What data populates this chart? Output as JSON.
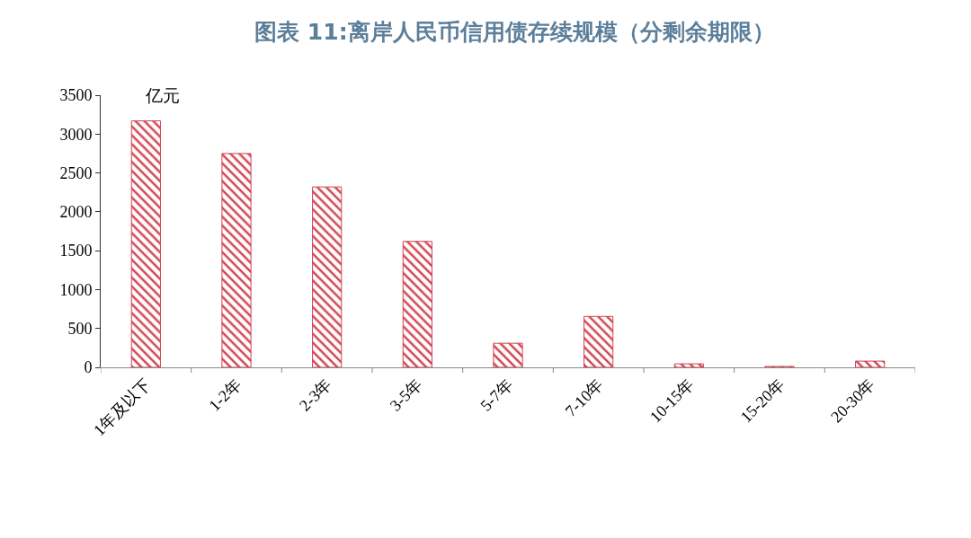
{
  "chart_data": {
    "type": "bar",
    "title": "图表 11:离岸人民币信用债存续规模（分剩余期限）",
    "ylabel": "亿元",
    "categories": [
      "1年及以下",
      "1-2年",
      "2-3年",
      "3-5年",
      "5-7年",
      "7-10年",
      "10-15年",
      "15-20年",
      "20-30年"
    ],
    "values": [
      3170,
      2750,
      2320,
      1620,
      310,
      655,
      45,
      12,
      80
    ],
    "color": "#d2424f",
    "ylim": [
      0,
      3500
    ],
    "yticks": [
      0,
      500,
      1000,
      1500,
      2000,
      2500,
      3000,
      3500
    ],
    "grid": false,
    "legend": false
  }
}
